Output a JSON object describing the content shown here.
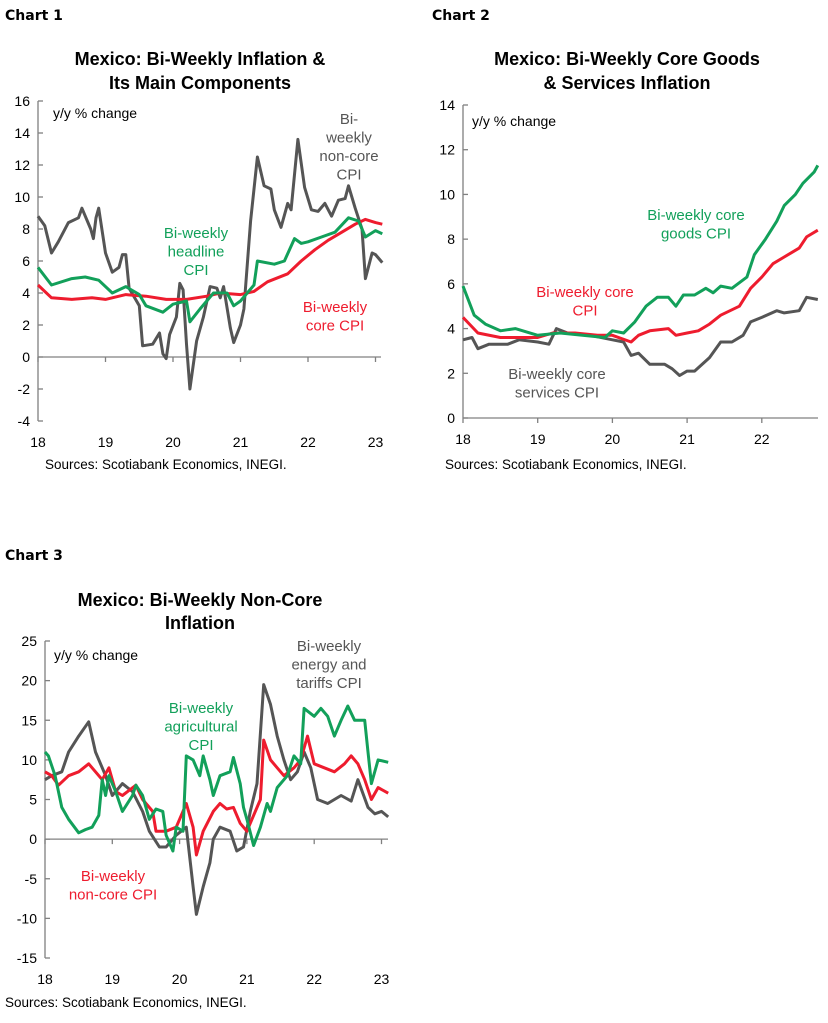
{
  "colors": {
    "green": "#12a05a",
    "red": "#ee1c2e",
    "gray": "#555555"
  },
  "chart_data": [
    {
      "chart_label": "Chart 1",
      "type": "line",
      "title": [
        "Mexico: Bi-Weekly Inflation &",
        "Its Main Components"
      ],
      "ylabel": "y/y % change",
      "ylim": [
        -4,
        16
      ],
      "yticks": [
        -4,
        -2,
        0,
        2,
        4,
        6,
        8,
        10,
        12,
        14,
        16
      ],
      "xlim": [
        18,
        23.1
      ],
      "xticks": [
        "18",
        "19",
        "20",
        "21",
        "22",
        "23"
      ],
      "grid": false,
      "source": "Sources: Scotiabank Economics, INEGI.",
      "series": [
        {
          "name": [
            "Bi-weekly",
            "headline",
            "CPI"
          ],
          "color": "green",
          "x": [
            18.0,
            18.2,
            18.5,
            18.7,
            18.9,
            19.1,
            19.3,
            19.5,
            19.6,
            19.85,
            20.0,
            20.2,
            20.25,
            20.4,
            20.6,
            20.8,
            20.9,
            21.0,
            21.2,
            21.25,
            21.5,
            21.65,
            21.8,
            21.9,
            22.0,
            22.2,
            22.4,
            22.6,
            22.75,
            22.85,
            23.0,
            23.1
          ],
          "y": [
            5.6,
            4.5,
            4.9,
            5.0,
            4.8,
            4.0,
            4.4,
            3.9,
            3.2,
            2.8,
            3.3,
            3.5,
            2.2,
            3.0,
            4.0,
            4.0,
            3.2,
            3.5,
            4.5,
            6.0,
            5.8,
            6.0,
            7.4,
            7.1,
            7.2,
            7.5,
            7.8,
            8.7,
            8.5,
            7.5,
            7.9,
            7.7
          ]
        },
        {
          "name": [
            "Bi-weekly",
            "core CPI"
          ],
          "color": "red",
          "x": [
            18.0,
            18.2,
            18.5,
            18.8,
            19.0,
            19.3,
            19.6,
            19.9,
            20.2,
            20.5,
            20.7,
            21.0,
            21.2,
            21.4,
            21.7,
            21.9,
            22.1,
            22.3,
            22.5,
            22.7,
            22.85,
            23.0,
            23.1
          ],
          "y": [
            4.5,
            3.7,
            3.6,
            3.7,
            3.6,
            3.9,
            3.8,
            3.6,
            3.6,
            3.8,
            4.0,
            3.9,
            4.1,
            4.7,
            5.2,
            6.0,
            6.7,
            7.3,
            7.8,
            8.3,
            8.6,
            8.4,
            8.3
          ]
        },
        {
          "name": [
            "Bi-",
            "weekly",
            "non-core",
            "CPI"
          ],
          "color": "gray",
          "x": [
            18.0,
            18.1,
            18.2,
            18.3,
            18.45,
            18.6,
            18.65,
            18.78,
            18.82,
            18.86,
            18.9,
            19.0,
            19.1,
            19.2,
            19.25,
            19.3,
            19.35,
            19.5,
            19.55,
            19.7,
            19.8,
            19.85,
            19.9,
            19.95,
            20.05,
            20.1,
            20.15,
            20.2,
            20.25,
            20.35,
            20.45,
            20.55,
            20.65,
            20.7,
            20.75,
            20.85,
            20.9,
            21.0,
            21.05,
            21.15,
            21.25,
            21.35,
            21.45,
            21.5,
            21.6,
            21.7,
            21.75,
            21.85,
            21.95,
            22.05,
            22.15,
            22.25,
            22.35,
            22.45,
            22.55,
            22.6,
            22.7,
            22.8,
            22.85,
            22.95,
            23.0,
            23.1
          ],
          "y": [
            8.8,
            8.2,
            6.5,
            7.2,
            8.4,
            8.7,
            9.3,
            8.0,
            7.4,
            8.7,
            9.3,
            6.5,
            5.3,
            5.6,
            6.4,
            6.4,
            4.3,
            3.2,
            0.7,
            0.8,
            1.5,
            0.2,
            -0.1,
            1.4,
            2.5,
            4.6,
            4.2,
            0.8,
            -2.0,
            1.0,
            2.5,
            4.4,
            4.3,
            3.7,
            4.4,
            1.8,
            0.9,
            2.0,
            3.0,
            8.5,
            12.5,
            10.7,
            10.5,
            9.2,
            8.1,
            9.6,
            9.2,
            13.6,
            10.6,
            9.2,
            9.1,
            9.6,
            8.8,
            9.8,
            9.9,
            10.7,
            9.3,
            8.0,
            4.9,
            6.5,
            6.4,
            5.9
          ]
        }
      ]
    },
    {
      "chart_label": "Chart 2",
      "type": "line",
      "title": [
        "Mexico: Bi-Weekly Core Goods",
        "& Services Inflation"
      ],
      "ylabel": "y/y % change",
      "ylim": [
        0,
        14
      ],
      "yticks": [
        0,
        2,
        4,
        6,
        8,
        10,
        12,
        14
      ],
      "xlim": [
        18,
        22.75
      ],
      "xticks": [
        "18",
        "19",
        "20",
        "21",
        "22"
      ],
      "grid": false,
      "source": "Sources: Scotiabank Economics, INEGI.",
      "series": [
        {
          "name": [
            "Bi-weekly core",
            "goods CPI"
          ],
          "color": "green",
          "x": [
            18.0,
            18.15,
            18.3,
            18.5,
            18.7,
            19.0,
            19.3,
            19.6,
            19.9,
            20.0,
            20.15,
            20.3,
            20.45,
            20.6,
            20.75,
            20.85,
            20.95,
            21.1,
            21.25,
            21.35,
            21.45,
            21.6,
            21.8,
            21.9,
            22.05,
            22.2,
            22.3,
            22.45,
            22.55,
            22.7,
            22.75
          ],
          "y": [
            5.9,
            4.6,
            4.2,
            3.9,
            4.0,
            3.7,
            3.8,
            3.7,
            3.6,
            3.9,
            3.8,
            4.3,
            5.0,
            5.4,
            5.4,
            5.0,
            5.5,
            5.5,
            5.8,
            5.6,
            5.9,
            5.8,
            6.3,
            7.3,
            8.0,
            8.8,
            9.5,
            10.0,
            10.5,
            11.0,
            11.3
          ]
        },
        {
          "name": [
            "Bi-weekly core",
            "CPI"
          ],
          "color": "red",
          "x": [
            18.0,
            18.2,
            18.5,
            18.8,
            19.0,
            19.2,
            19.5,
            19.8,
            20.0,
            20.25,
            20.35,
            20.5,
            20.75,
            20.85,
            21.0,
            21.15,
            21.3,
            21.45,
            21.7,
            21.85,
            22.0,
            22.15,
            22.3,
            22.5,
            22.6,
            22.75
          ],
          "y": [
            4.5,
            3.8,
            3.6,
            3.6,
            3.6,
            3.8,
            3.8,
            3.7,
            3.7,
            3.4,
            3.7,
            3.9,
            4.0,
            3.7,
            3.8,
            3.9,
            4.2,
            4.6,
            5.0,
            5.8,
            6.3,
            6.9,
            7.2,
            7.6,
            8.1,
            8.4
          ]
        },
        {
          "name": [
            "Bi-weekly core",
            "services CPI"
          ],
          "color": "gray",
          "x": [
            18.0,
            18.12,
            18.2,
            18.35,
            18.6,
            18.75,
            19.0,
            19.15,
            19.25,
            19.4,
            19.7,
            20.0,
            20.15,
            20.25,
            20.35,
            20.5,
            20.7,
            20.8,
            20.9,
            21.0,
            21.1,
            21.3,
            21.45,
            21.6,
            21.75,
            21.85,
            22.0,
            22.2,
            22.3,
            22.5,
            22.6,
            22.75
          ],
          "y": [
            3.5,
            3.6,
            3.1,
            3.3,
            3.3,
            3.5,
            3.4,
            3.3,
            4.0,
            3.8,
            3.7,
            3.5,
            3.4,
            2.8,
            2.9,
            2.4,
            2.4,
            2.2,
            1.9,
            2.1,
            2.1,
            2.7,
            3.4,
            3.4,
            3.7,
            4.3,
            4.5,
            4.8,
            4.7,
            4.8,
            5.4,
            5.3
          ]
        }
      ]
    },
    {
      "chart_label": "Chart 3",
      "type": "line",
      "title": [
        "Mexico: Bi-Weekly Non-Core",
        "Inflation"
      ],
      "ylabel": "y/y % change",
      "ylim": [
        -15,
        25
      ],
      "yticks": [
        -15,
        -10,
        -5,
        0,
        5,
        10,
        15,
        20,
        25
      ],
      "xlim": [
        18,
        23.1
      ],
      "xticks": [
        "18",
        "19",
        "20",
        "21",
        "22",
        "23"
      ],
      "grid": false,
      "source": "Sources: Scotiabank Economics, INEGI.",
      "series": [
        {
          "name": [
            "Bi-weekly",
            "agricultural",
            "CPI"
          ],
          "color": "green",
          "x": [
            18.0,
            18.05,
            18.15,
            18.25,
            18.35,
            18.5,
            18.6,
            18.7,
            18.8,
            18.85,
            18.9,
            18.95,
            19.05,
            19.15,
            19.3,
            19.35,
            19.45,
            19.55,
            19.65,
            19.75,
            19.8,
            19.9,
            19.95,
            20.05,
            20.1,
            20.2,
            20.3,
            20.35,
            20.45,
            20.5,
            20.6,
            20.75,
            20.8,
            20.9,
            20.95,
            21.0,
            21.1,
            21.2,
            21.3,
            21.35,
            21.45,
            21.6,
            21.7,
            21.8,
            21.85,
            22.0,
            22.1,
            22.2,
            22.3,
            22.4,
            22.5,
            22.6,
            22.75,
            22.8,
            22.85,
            22.95,
            23.1
          ],
          "y": [
            11,
            10.5,
            8,
            4,
            2.5,
            0.8,
            1.2,
            1.5,
            3,
            7.5,
            5.5,
            8,
            6,
            3.5,
            5.5,
            6.8,
            5.5,
            2.5,
            3.8,
            3.5,
            0.5,
            -1.5,
            1.5,
            1.0,
            10.5,
            10,
            8,
            10.5,
            7.5,
            5.5,
            8.0,
            8.5,
            10.3,
            7,
            4,
            2.5,
            -0.8,
            1.5,
            4.5,
            3.5,
            6.5,
            8,
            10.5,
            9.5,
            16.5,
            15.5,
            16.5,
            15.5,
            13,
            15,
            16.8,
            15,
            15,
            11,
            7,
            10,
            9.7
          ]
        },
        {
          "name": [
            "Bi-weekly",
            "non-core CPI"
          ],
          "color": "red",
          "x": [
            18.0,
            18.1,
            18.2,
            18.35,
            18.5,
            18.65,
            18.75,
            18.85,
            18.95,
            19.05,
            19.15,
            19.35,
            19.45,
            19.6,
            19.65,
            19.8,
            19.95,
            20.05,
            20.1,
            20.2,
            20.25,
            20.35,
            20.5,
            20.6,
            20.7,
            20.8,
            20.9,
            21.0,
            21.1,
            21.2,
            21.25,
            21.35,
            21.45,
            21.55,
            21.7,
            21.8,
            21.9,
            22.0,
            22.15,
            22.3,
            22.45,
            22.55,
            22.65,
            22.75,
            22.85,
            22.95,
            23.1
          ],
          "y": [
            8.5,
            8,
            6.8,
            8,
            8.5,
            9.5,
            8.5,
            7.5,
            9,
            6,
            5.5,
            6.8,
            5,
            3.5,
            1,
            1,
            1.5,
            3.5,
            4.5,
            1.5,
            -2,
            1,
            3.5,
            4.5,
            3.8,
            4,
            2,
            1,
            3,
            5,
            12.5,
            10,
            9,
            8,
            9,
            10,
            13,
            9.5,
            9,
            8.5,
            9.5,
            10.5,
            9.5,
            7.5,
            5,
            6.5,
            5.8
          ]
        },
        {
          "name": [
            "Bi-weekly",
            "energy and",
            "tariffs CPI"
          ],
          "color": "gray",
          "x": [
            18.0,
            18.1,
            18.25,
            18.35,
            18.5,
            18.65,
            18.75,
            18.9,
            19.0,
            19.15,
            19.3,
            19.45,
            19.55,
            19.7,
            19.8,
            19.95,
            20.1,
            20.2,
            20.25,
            20.35,
            20.45,
            20.5,
            20.6,
            20.75,
            20.85,
            20.95,
            21.05,
            21.15,
            21.25,
            21.35,
            21.45,
            21.55,
            21.65,
            21.75,
            21.85,
            21.95,
            22.05,
            22.2,
            22.4,
            22.55,
            22.65,
            22.8,
            22.9,
            23.0,
            23.1
          ],
          "y": [
            7.5,
            8,
            8.5,
            11,
            13,
            14.8,
            11,
            8,
            5.5,
            7,
            6,
            3.5,
            1,
            -1,
            -1,
            0.5,
            1.5,
            -6,
            -9.5,
            -6,
            -3,
            0,
            1.5,
            1,
            -1.5,
            -1,
            3.5,
            7,
            19.5,
            17,
            13,
            10,
            7.5,
            8.5,
            11,
            9,
            5,
            4.5,
            5.5,
            4.8,
            7.5,
            4,
            3.2,
            3.5,
            2.8
          ]
        }
      ]
    }
  ]
}
